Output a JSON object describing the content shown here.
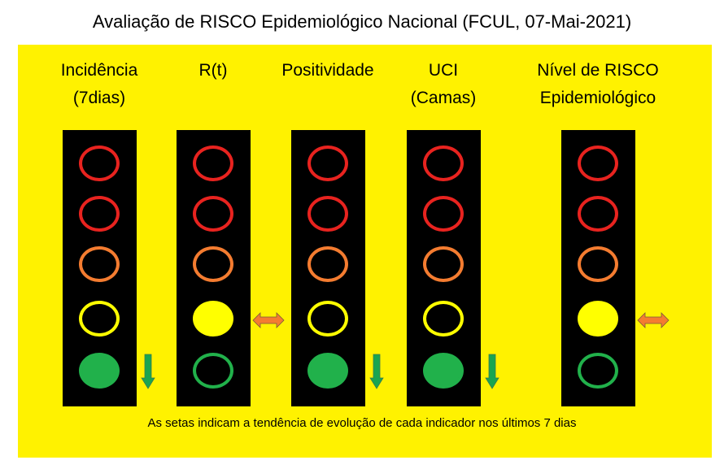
{
  "title": "Avaliação de RISCO Epidemiológico Nacional (FCUL, 07-Mai-2021)",
  "colors": {
    "background": "#fff200",
    "red": "#e8231f",
    "orange": "#f47c30",
    "yellow": "#ffff00",
    "green": "#21b14b",
    "arrow_down": "#1aa550",
    "arrow_steady": "#f47c30"
  },
  "levels": [
    "red",
    "red",
    "orange",
    "yellow",
    "green"
  ],
  "indicators": [
    {
      "label_lines": [
        "Incidência",
        "(7dias)"
      ],
      "active_level": "green",
      "trend": "down"
    },
    {
      "label_lines": [
        "R(t)"
      ],
      "active_level": "yellow",
      "trend": "steady"
    },
    {
      "label_lines": [
        "Positividade"
      ],
      "active_level": "green",
      "trend": "down"
    },
    {
      "label_lines": [
        "UCI",
        "(Camas)"
      ],
      "active_level": "green",
      "trend": "down"
    },
    {
      "label_lines": [
        "Nível de RISCO",
        "Epidemiológico"
      ],
      "active_level": "yellow",
      "trend": "steady"
    }
  ],
  "note": "As setas indicam a tendência de evolução de cada indicador nos últimos 7 dias"
}
